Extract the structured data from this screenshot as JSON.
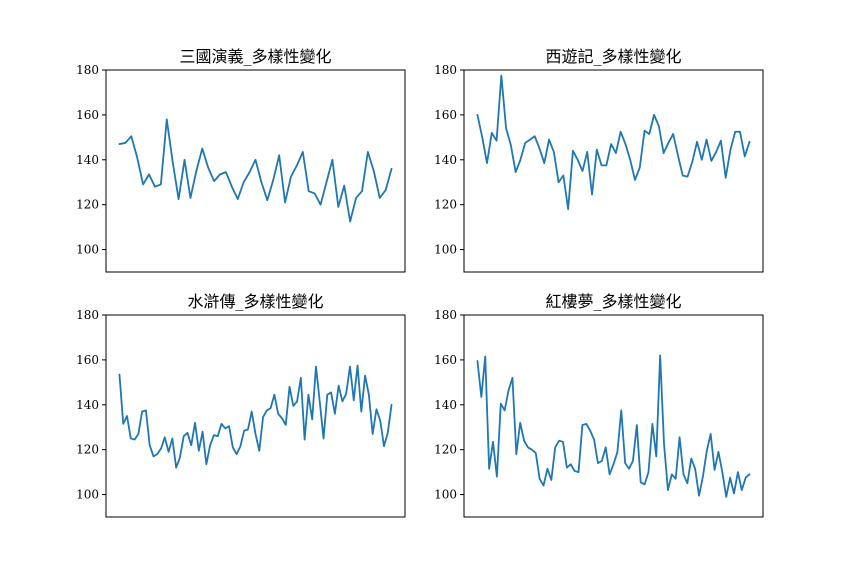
{
  "figure": {
    "line_color": "#1f77b4"
  },
  "chart_data": [
    {
      "type": "line",
      "title": "三國演義_多樣性變化",
      "xlabel": "",
      "ylabel": "",
      "ylim": [
        90,
        180
      ],
      "yticks": [
        100,
        120,
        140,
        160,
        180
      ],
      "xticks": [],
      "grid": false,
      "series": [
        {
          "values": [
            147,
            147.5,
            150.5,
            141,
            129,
            133.5,
            128,
            129,
            158,
            139,
            122.5,
            140,
            123,
            135,
            145,
            136.5,
            130.5,
            133.5,
            134.5,
            128,
            122.5,
            130,
            134.5,
            140,
            130,
            122,
            131,
            142,
            121,
            132.5,
            137.5,
            143.5,
            126,
            125,
            120,
            130,
            140,
            119,
            128.5,
            112.5,
            123,
            126,
            143.5,
            135,
            123,
            126.5,
            136
          ]
        }
      ]
    },
    {
      "type": "line",
      "title": "西遊記_多樣性變化",
      "xlabel": "",
      "ylabel": "",
      "ylim": [
        90,
        180
      ],
      "yticks": [
        100,
        120,
        140,
        160,
        180
      ],
      "xticks": [],
      "grid": false,
      "series": [
        {
          "values": [
            160,
            150,
            138.5,
            152,
            148.5,
            177.5,
            154,
            146.5,
            134.5,
            140,
            147.5,
            149,
            150.5,
            145,
            138.5,
            149,
            143.5,
            130,
            133,
            118,
            144,
            140,
            135,
            143.5,
            124.5,
            144.5,
            137.5,
            137.5,
            147,
            143,
            152.5,
            147,
            140,
            131,
            136.5,
            153,
            151.5,
            160,
            155,
            143,
            147.5,
            151.5,
            142,
            133,
            132.5,
            139,
            148,
            140,
            149,
            139.5,
            143.5,
            148.5,
            132,
            144.5,
            152.5,
            152.5,
            141.5,
            148
          ]
        }
      ]
    },
    {
      "type": "line",
      "title": "水滸傳_多樣性變化",
      "xlabel": "",
      "ylabel": "",
      "ylim": [
        90,
        180
      ],
      "yticks": [
        100,
        120,
        140,
        160,
        180
      ],
      "xticks": [],
      "grid": false,
      "series": [
        {
          "values": [
            153.5,
            131.5,
            135,
            125,
            124.5,
            127,
            137,
            137.5,
            122,
            117,
            118,
            120.5,
            125.5,
            119,
            125,
            112,
            116.5,
            126,
            127.5,
            122,
            132,
            119.5,
            128,
            113.5,
            122,
            126.5,
            126,
            131.5,
            129.5,
            130.5,
            121,
            118,
            121.5,
            128.5,
            129,
            137,
            127,
            119.5,
            134.5,
            137.5,
            138.5,
            144.5,
            136,
            134,
            131,
            148,
            139.5,
            141.5,
            152,
            124.5,
            144.5,
            133.5,
            157,
            141.5,
            125,
            144.5,
            145.5,
            136,
            148.5,
            141.5,
            145,
            157,
            142,
            157.5,
            137,
            153,
            144.5,
            127,
            138,
            133,
            121.5,
            127.5,
            140
          ]
        }
      ]
    },
    {
      "type": "line",
      "title": "紅樓夢_多樣性變化",
      "xlabel": "",
      "ylabel": "",
      "ylim": [
        90,
        180
      ],
      "yticks": [
        100,
        120,
        140,
        160,
        180
      ],
      "xticks": [],
      "grid": false,
      "series": [
        {
          "values": [
            159.5,
            143.5,
            161.5,
            111.5,
            123.5,
            108,
            140.5,
            137.5,
            146.5,
            152,
            118,
            132,
            124,
            121,
            120,
            118.5,
            107,
            104,
            111.5,
            106.5,
            121,
            124,
            123.5,
            112,
            113.5,
            110.5,
            110,
            131,
            131.5,
            128.5,
            124.5,
            114,
            115,
            121,
            109,
            113.5,
            119,
            137.5,
            114,
            111.5,
            115,
            131,
            105.5,
            104.5,
            110,
            131.5,
            117,
            162,
            122.5,
            102,
            109,
            107,
            125.5,
            109,
            105,
            116,
            111.5,
            99.5,
            108,
            119.5,
            127,
            111,
            119,
            110,
            99,
            107.5,
            100.5,
            110,
            102,
            107.5,
            109
          ]
        }
      ]
    }
  ]
}
